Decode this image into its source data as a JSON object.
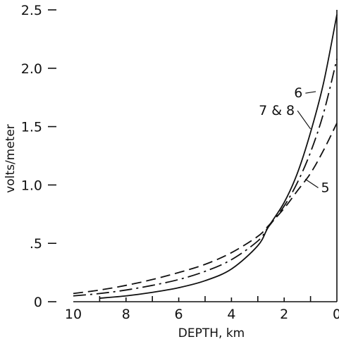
{
  "chart_data": {
    "type": "line",
    "title": "",
    "xlabel": "DEPTH,  km",
    "ylabel": "volts/meter",
    "xlim": [
      10,
      0
    ],
    "ylim": [
      0,
      2.5
    ],
    "x_reversed": true,
    "grid": false,
    "legend": "none",
    "x_ticks": [
      {
        "value": 10,
        "label": "10"
      },
      {
        "value": 8,
        "label": "8"
      },
      {
        "value": 6,
        "label": "6"
      },
      {
        "value": 4,
        "label": "4"
      },
      {
        "value": 2,
        "label": "2"
      },
      {
        "value": 0,
        "label": "0"
      }
    ],
    "y_ticks": [
      {
        "value": 0,
        "label": "0"
      },
      {
        "value": 0.5,
        "label": ".5"
      },
      {
        "value": 1.0,
        "label": "1.0"
      },
      {
        "value": 1.5,
        "label": "1.5"
      },
      {
        "value": 2.0,
        "label": "2.0"
      },
      {
        "value": 2.5,
        "label": "2.5"
      }
    ],
    "series": [
      {
        "label": "6",
        "style": "solid",
        "color": "#111111",
        "x": [
          9.0,
          8.0,
          7.0,
          6.0,
          5.0,
          4.0,
          3.0,
          2.6,
          2.0,
          1.5,
          1.0,
          0.5,
          0.0
        ],
        "y": [
          0.03,
          0.05,
          0.08,
          0.12,
          0.18,
          0.28,
          0.48,
          0.64,
          0.85,
          1.1,
          1.45,
          1.88,
          2.46
        ],
        "label_at": {
          "x": 0.8,
          "y": 1.8,
          "text_x": 1.3,
          "text_y": 1.75
        }
      },
      {
        "label": "7 & 8",
        "style": "dashdot",
        "color": "#111111",
        "x": [
          10.0,
          9.0,
          8.0,
          7.0,
          6.0,
          5.0,
          4.0,
          3.0,
          2.6,
          2.0,
          1.5,
          1.0,
          0.5,
          0.0
        ],
        "y": [
          0.05,
          0.07,
          0.1,
          0.14,
          0.19,
          0.26,
          0.36,
          0.52,
          0.64,
          0.82,
          1.02,
          1.28,
          1.62,
          2.08
        ],
        "label_at": {
          "x": 1.0,
          "y": 1.48,
          "text_x": 1.6,
          "text_y": 1.6
        }
      },
      {
        "label": "5",
        "style": "dashed",
        "color": "#111111",
        "x": [
          10.0,
          9.0,
          8.0,
          7.0,
          6.0,
          5.0,
          4.0,
          3.0,
          2.6,
          2.0,
          1.5,
          1.0,
          0.5,
          0.0
        ],
        "y": [
          0.07,
          0.1,
          0.14,
          0.19,
          0.25,
          0.32,
          0.42,
          0.56,
          0.65,
          0.8,
          0.95,
          1.1,
          1.3,
          1.53
        ],
        "label_at": {
          "x": 1.2,
          "y": 1.05,
          "text_x": 0.6,
          "text_y": 0.94
        }
      }
    ]
  }
}
